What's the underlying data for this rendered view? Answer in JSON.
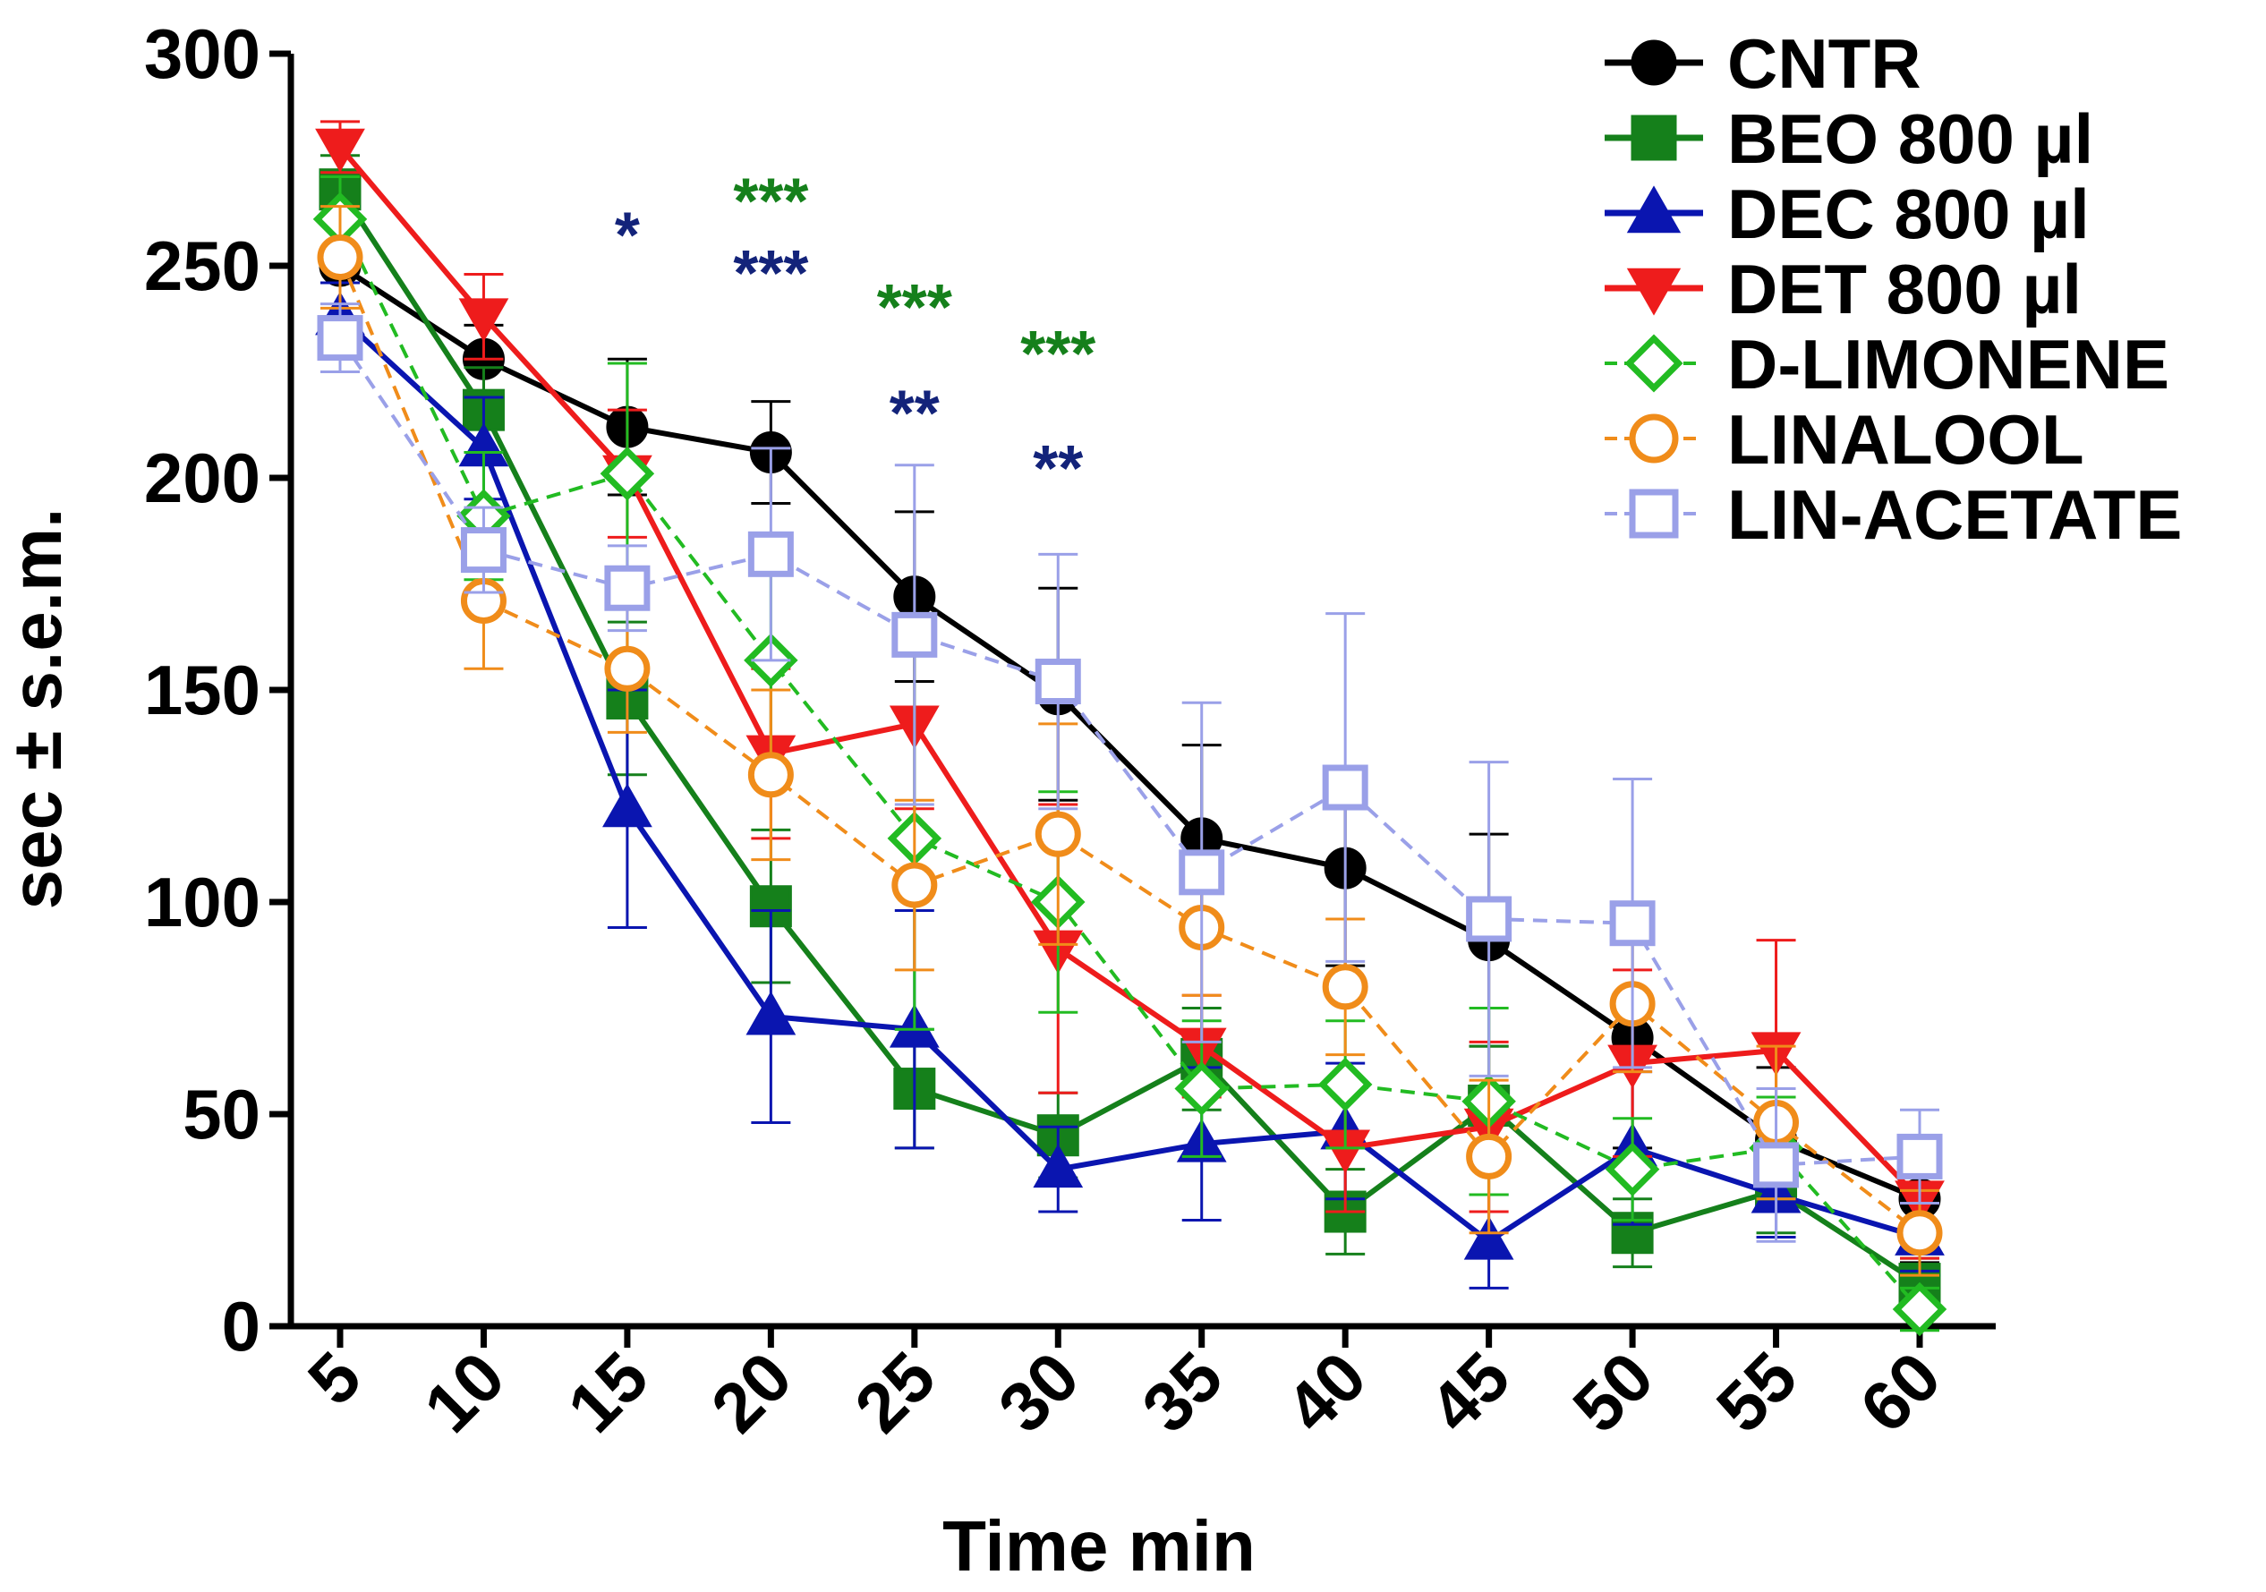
{
  "chart_data": {
    "type": "line",
    "title": "",
    "xlabel": "Time min",
    "ylabel": "sec ± s.e.m.",
    "x": [
      5,
      10,
      15,
      20,
      25,
      30,
      35,
      40,
      45,
      50,
      55,
      60
    ],
    "x_tick_labels": [
      "5",
      "10",
      "15",
      "20",
      "25",
      "30",
      "35",
      "40",
      "45",
      "50",
      "55",
      "60"
    ],
    "ylim": [
      0,
      300
    ],
    "y_ticks": [
      0,
      50,
      100,
      150,
      200,
      250,
      300
    ],
    "y_tick_labels": [
      "0",
      "50",
      "100",
      "150",
      "200",
      "250",
      "300"
    ],
    "grid": false,
    "legend_position": "top-right",
    "series": [
      {
        "name": "CNTR",
        "color": "#000000",
        "marker": "circle",
        "filled": true,
        "dashed": false,
        "values": [
          250,
          228,
          212,
          206,
          172,
          149,
          115,
          108,
          91,
          68,
          44,
          30
        ],
        "errors": [
          12,
          8,
          16,
          12,
          20,
          25,
          22,
          23,
          25,
          26,
          17,
          15
        ]
      },
      {
        "name": "BEO 800 µl",
        "color": "#15801b",
        "marker": "square",
        "filled": true,
        "dashed": false,
        "values": [
          268,
          216,
          148,
          99,
          56,
          45,
          63,
          27,
          52,
          22,
          32,
          10
        ],
        "errors": [
          8,
          10,
          18,
          18,
          14,
          10,
          12,
          10,
          14,
          8,
          10,
          6
        ]
      },
      {
        "name": "DEC 800 µl",
        "color": "#0a15b0",
        "marker": "triangle-up",
        "filled": true,
        "dashed": false,
        "values": [
          238,
          207,
          122,
          73,
          70,
          37,
          43,
          46,
          20,
          42,
          31,
          21
        ],
        "errors": [
          8,
          12,
          28,
          25,
          28,
          10,
          18,
          16,
          11,
          18,
          10,
          8
        ]
      },
      {
        "name": "DET 800 µl",
        "color": "#ee1c1c",
        "marker": "triangle-down",
        "filled": true,
        "dashed": false,
        "values": [
          278,
          238,
          201,
          135,
          142,
          89,
          66,
          42,
          47,
          62,
          65,
          30
        ],
        "errors": [
          6,
          10,
          15,
          20,
          20,
          34,
          12,
          15,
          20,
          22,
          26,
          14
        ]
      },
      {
        "name": "D-LIMONENE",
        "color": "#22bb22",
        "marker": "diamond",
        "filled": false,
        "dashed": true,
        "values": [
          261,
          191,
          201,
          157,
          115,
          100,
          56,
          57,
          53,
          37,
          42,
          4
        ],
        "errors": [
          10,
          15,
          26,
          25,
          45,
          26,
          16,
          15,
          22,
          12,
          12,
          5
        ]
      },
      {
        "name": "LINALOOL",
        "color": "#f08c1a",
        "marker": "circle",
        "filled": false,
        "dashed": true,
        "values": [
          252,
          171,
          155,
          130,
          104,
          116,
          94,
          80,
          40,
          76,
          48,
          22
        ],
        "errors": [
          12,
          16,
          15,
          20,
          20,
          26,
          16,
          16,
          18,
          16,
          18,
          10
        ]
      },
      {
        "name": "LIN-ACETATE",
        "color": "#9aa0e8",
        "marker": "square",
        "filled": false,
        "dashed": true,
        "values": [
          233,
          183,
          174,
          182,
          163,
          152,
          107,
          127,
          96,
          95,
          38,
          40
        ],
        "errors": [
          8,
          10,
          10,
          25,
          40,
          30,
          40,
          41,
          37,
          34,
          18,
          11
        ]
      }
    ],
    "annotations": [
      {
        "x": 15,
        "y": 252,
        "text": "*",
        "color": "#13237a"
      },
      {
        "x": 20,
        "y": 260,
        "text": "***",
        "color": "#15801b"
      },
      {
        "x": 20,
        "y": 243,
        "text": "***",
        "color": "#13237a"
      },
      {
        "x": 25,
        "y": 235,
        "text": "***",
        "color": "#15801b"
      },
      {
        "x": 25,
        "y": 210,
        "text": "**",
        "color": "#13237a"
      },
      {
        "x": 30,
        "y": 224,
        "text": "***",
        "color": "#15801b"
      },
      {
        "x": 30,
        "y": 197,
        "text": "**",
        "color": "#13237a"
      }
    ]
  }
}
